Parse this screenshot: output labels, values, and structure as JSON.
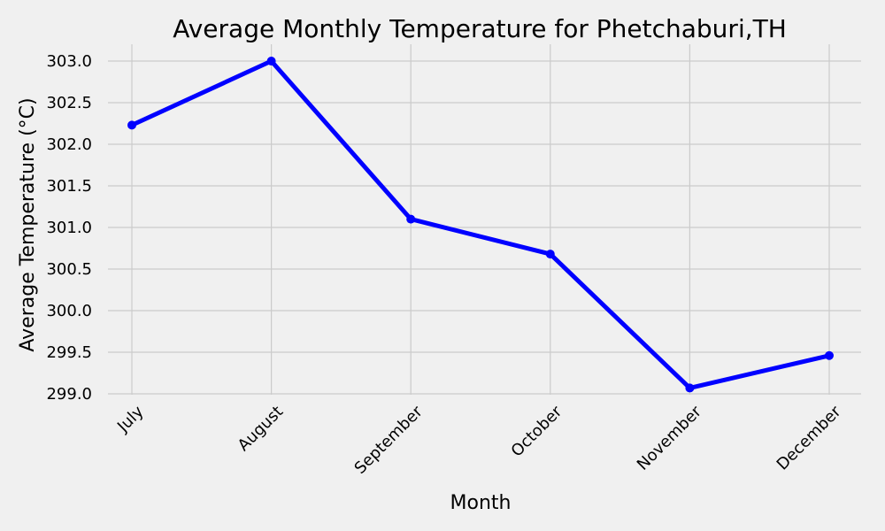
{
  "chart_data": {
    "type": "line",
    "title": "Average Monthly Temperature for Phetchaburi,TH",
    "xlabel": "Month",
    "ylabel": "Average Temperature (°C)",
    "categories": [
      "July",
      "August",
      "September",
      "October",
      "November",
      "December"
    ],
    "series": [
      {
        "values": [
          302.23,
          303.0,
          301.1,
          300.68,
          299.07,
          299.46
        ]
      }
    ],
    "ylim": [
      299.0,
      303.0
    ],
    "yticks": [
      "299.0",
      "299.5",
      "300.0",
      "300.5",
      "301.0",
      "301.5",
      "302.0",
      "302.5",
      "303.0"
    ],
    "grid": true,
    "colors": {
      "line": "#0000ff",
      "background": "#f0f0f0",
      "grid": "#cbcbcb"
    }
  }
}
